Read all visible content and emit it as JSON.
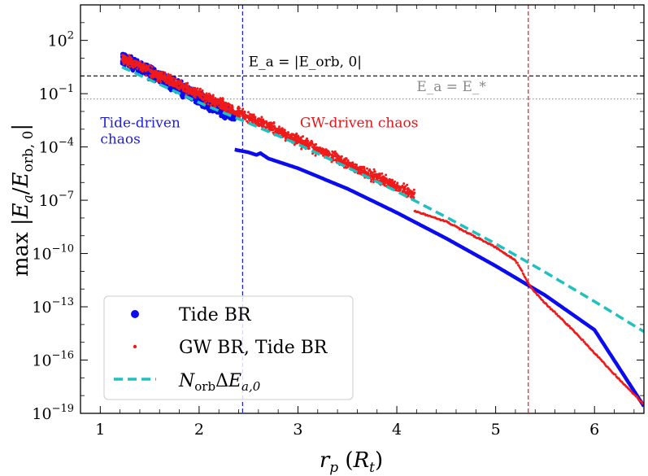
{
  "chart_data": {
    "type": "scatter",
    "xlabel": "r_p (R_t)",
    "ylabel": "max |E_a / E_orb, 0|",
    "xlim": [
      0.8,
      6.5
    ],
    "ylim_log10": [
      -19,
      4
    ],
    "yscale": "log",
    "x_ticks": [
      1,
      2,
      3,
      4,
      5,
      6
    ],
    "y_ticks": [
      {
        "exp": 2,
        "label": "10^2"
      },
      {
        "exp": -1,
        "label": "10^-1"
      },
      {
        "exp": -4,
        "label": "10^-4"
      },
      {
        "exp": -7,
        "label": "10^-7"
      },
      {
        "exp": -10,
        "label": "10^-10"
      },
      {
        "exp": -13,
        "label": "10^-13"
      },
      {
        "exp": -16,
        "label": "10^-16"
      },
      {
        "exp": -19,
        "label": "10^-19"
      }
    ],
    "hlines": [
      {
        "name": "E_a = |E_orb,0|",
        "y_log10": 0,
        "color": "#000000",
        "style": "dashed"
      },
      {
        "name": "E_a = E_*",
        "y_log10": -1.3,
        "color": "#8a8a8a",
        "style": "dotted"
      }
    ],
    "vlines": [
      {
        "x": 2.44,
        "color": "#1a1ad6",
        "style": "dashed"
      },
      {
        "x": 5.33,
        "color": "#e0161c",
        "style": "dashed"
      }
    ],
    "annotations": [
      {
        "text_lines": [
          "Tide-driven",
          "chaos"
        ],
        "x": 1.0,
        "y_log10": -2.9,
        "color": "#1f1fd9"
      },
      {
        "text_lines": [
          "GW-driven chaos"
        ],
        "x": 3.02,
        "y_log10": -2.9,
        "color": "#e3161b"
      },
      {
        "text_lines": [
          "E_a = |E_orb, 0|"
        ],
        "x": 2.5,
        "y_log10": 0.55,
        "color": "#000000"
      },
      {
        "text_lines": [
          "E_a = E_*"
        ],
        "x": 4.2,
        "y_log10": -0.85,
        "color": "#8a8a8a"
      }
    ],
    "series": [
      {
        "name": "Tide BR",
        "color": "#0b0bf0",
        "marker": "circle",
        "chaotic_band": {
          "x_range": [
            1.22,
            2.36
          ],
          "y_log10_start": 1.0,
          "y_log10_end": -2.3,
          "spread": 0.5
        },
        "curve": {
          "x": [
            2.36,
            2.5,
            2.58,
            2.62,
            2.7,
            3.0,
            3.5,
            4.0,
            4.5,
            5.0,
            5.5,
            6.0,
            6.5
          ],
          "y_log10": [
            -4.15,
            -4.3,
            -4.45,
            -4.35,
            -4.65,
            -5.2,
            -6.35,
            -7.7,
            -9.15,
            -10.7,
            -12.35,
            -14.3,
            -18.6
          ]
        }
      },
      {
        "name": "GW BR, Tide BR",
        "color": "#f01a1a",
        "marker": "small-dot",
        "chaotic_band": {
          "x_range": [
            1.22,
            4.18
          ],
          "y_log10_start": 1.0,
          "y_log10_end": -6.7,
          "spread": 0.45
        },
        "curve": {
          "x": [
            4.18,
            4.5,
            5.0,
            5.2,
            5.26,
            5.32,
            5.4,
            5.5,
            5.65,
            5.8,
            6.0,
            6.2,
            6.5
          ],
          "y_log10": [
            -7.6,
            -8.2,
            -9.65,
            -10.4,
            -10.9,
            -11.6,
            -12.2,
            -12.8,
            -13.6,
            -14.4,
            -15.6,
            -16.8,
            -18.5
          ]
        }
      },
      {
        "name": "N_orb ΔE_a,0",
        "color": "#1ec0c0",
        "style": "dashed",
        "x": [
          1.22,
          2.0,
          2.5,
          3.0,
          3.5,
          4.0,
          4.5,
          5.0,
          5.5,
          6.0,
          6.5
        ],
        "y_log10": [
          0.5,
          -1.5,
          -2.65,
          -3.85,
          -5.15,
          -6.5,
          -7.95,
          -9.45,
          -11.05,
          -12.7,
          -14.4
        ]
      }
    ],
    "legend": {
      "position": "lower-left",
      "entries": [
        "Tide BR",
        "GW BR, Tide BR",
        "N_orb ΔE_a,0"
      ]
    }
  }
}
